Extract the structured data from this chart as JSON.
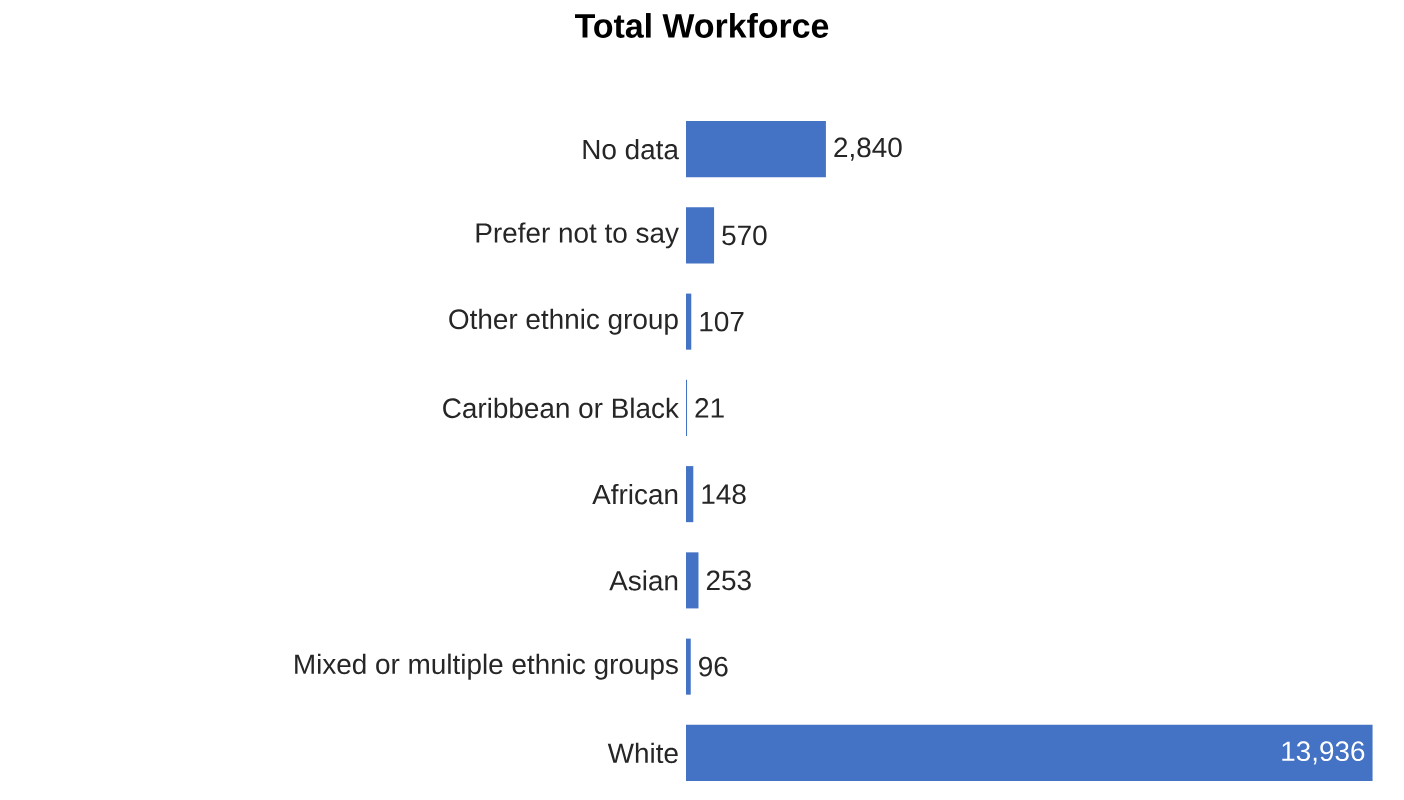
{
  "chart_data": {
    "type": "bar",
    "orientation": "horizontal",
    "title": "Total Workforce",
    "categories": [
      "No data",
      "Prefer not to say",
      "Other ethnic group",
      "Caribbean or Black",
      "African",
      "Asian",
      "Mixed or multiple ethnic groups",
      "White"
    ],
    "values": [
      2840,
      570,
      107,
      21,
      148,
      253,
      96,
      13936
    ],
    "value_labels": [
      "2,840",
      "570",
      "107",
      "21",
      "148",
      "253",
      "96",
      "13,936"
    ],
    "color": "#4472c4"
  }
}
